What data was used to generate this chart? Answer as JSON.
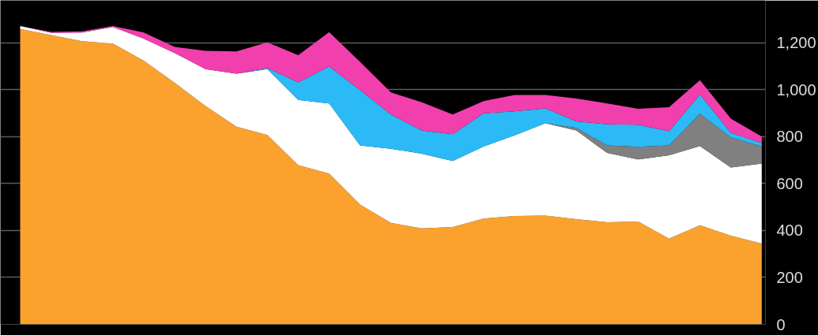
{
  "chart_data": {
    "type": "area",
    "stacked": true,
    "categories": [
      null,
      null,
      null,
      null,
      null,
      null,
      null,
      null,
      null,
      null,
      null,
      null,
      null,
      null,
      null,
      null,
      null,
      null,
      null,
      null,
      null,
      null,
      null,
      null,
      null
    ],
    "series": [
      {
        "color": "#fba12d",
        "values": [
          1258,
          1232,
          1206,
          1196,
          1123,
          1029,
          930,
          842,
          807,
          678,
          642,
          510,
          432,
          409,
          415,
          451,
          462,
          463,
          448,
          435,
          438,
          365,
          422,
          378,
          344
        ]
      },
      {
        "color": "#ffffff",
        "values": [
          13,
          10,
          37,
          71,
          94,
          127,
          157,
          226,
          280,
          278,
          299,
          252,
          316,
          318,
          281,
          307,
          343,
          394,
          378,
          295,
          265,
          355,
          338,
          290,
          341
        ]
      },
      {
        "color": "#808080",
        "values": [
          0,
          0,
          0,
          0,
          0,
          0,
          0,
          0,
          0,
          0,
          0,
          0,
          0,
          0,
          0,
          0,
          0,
          0,
          11,
          32,
          53,
          42,
          137,
          129,
          73
        ]
      },
      {
        "color": "#2bbaf6",
        "values": [
          0,
          0,
          0,
          0,
          0,
          0,
          0,
          0,
          5,
          75,
          158,
          236,
          146,
          99,
          114,
          141,
          102,
          63,
          28,
          90,
          94,
          61,
          82,
          19,
          14
        ]
      },
      {
        "color": "#f23fae",
        "values": [
          0,
          4,
          5,
          4,
          26,
          26,
          78,
          95,
          109,
          116,
          146,
          120,
          94,
          120,
          84,
          52,
          70,
          57,
          97,
          89,
          68,
          102,
          61,
          60,
          28
        ]
      }
    ],
    "ylim": [
      0,
      1380
    ],
    "yticks": [
      0,
      200,
      400,
      600,
      800,
      {
        "value": 1000,
        "label": "1,000"
      },
      {
        "value": 1200,
        "label": "1,200"
      }
    ],
    "grid": "y",
    "tick_labels": "y"
  }
}
